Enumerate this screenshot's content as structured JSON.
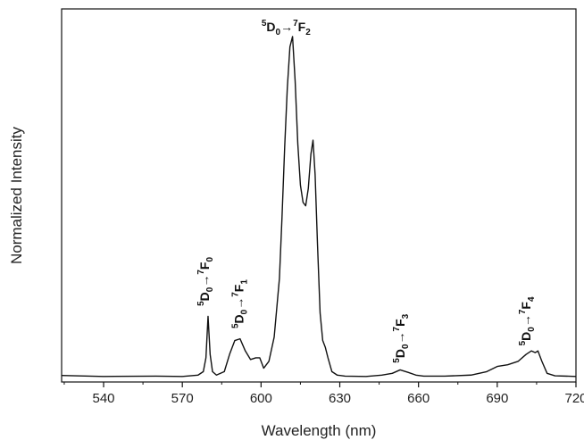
{
  "chart_data": {
    "type": "line",
    "title": "",
    "xlabel": "Wavelength (nm)",
    "ylabel": "Normalized Intensity",
    "xlim": [
      524,
      720
    ],
    "ylim": [
      0,
      1.08
    ],
    "xticks": [
      540,
      570,
      600,
      630,
      660,
      690,
      720
    ],
    "xtick_labels": [
      "540",
      "570",
      "600",
      "630",
      "660",
      "690",
      "720"
    ],
    "yticks_shown": false,
    "grid": false,
    "legend": "none",
    "line_color": "#111111",
    "series": [
      {
        "x": [
          524,
          540,
          560,
          570,
          576,
          578,
          579,
          579.8,
          580.6,
          581.5,
          583,
          586,
          588,
          590,
          592,
          594,
          596,
          598,
          599.5,
          601,
          603,
          605,
          607,
          608,
          609,
          610,
          611,
          612,
          613,
          614,
          615,
          616,
          617,
          618,
          619,
          619.8,
          620.6,
          621.5,
          622.5,
          623.5,
          624.5,
          625.5,
          627,
          629,
          632,
          640,
          646,
          650,
          653,
          656,
          659,
          662,
          670,
          680,
          686,
          690,
          694,
          698,
          701,
          703,
          704.5,
          705.5,
          707,
          709,
          712,
          720
        ],
        "y": [
          0.019,
          0.016,
          0.017,
          0.016,
          0.02,
          0.03,
          0.07,
          0.19,
          0.08,
          0.03,
          0.02,
          0.03,
          0.08,
          0.12,
          0.125,
          0.09,
          0.065,
          0.07,
          0.07,
          0.04,
          0.06,
          0.13,
          0.3,
          0.48,
          0.68,
          0.85,
          0.97,
          1.0,
          0.87,
          0.69,
          0.57,
          0.52,
          0.51,
          0.56,
          0.66,
          0.7,
          0.6,
          0.4,
          0.2,
          0.12,
          0.1,
          0.07,
          0.03,
          0.02,
          0.017,
          0.016,
          0.02,
          0.025,
          0.035,
          0.028,
          0.02,
          0.017,
          0.017,
          0.02,
          0.03,
          0.045,
          0.05,
          0.06,
          0.08,
          0.09,
          0.085,
          0.09,
          0.06,
          0.025,
          0.018,
          0.016
        ]
      }
    ],
    "annotations": [
      {
        "label": "5D0→7F0",
        "sup1": "5",
        "main1": "D",
        "sub1": "0",
        "arrow": "→",
        "sup2": "7",
        "main2": "F",
        "sub2": "0",
        "x": 578.5,
        "y": 0.22,
        "orientation": "vertical"
      },
      {
        "label": "5D0→7F1",
        "sup1": "5",
        "main1": "D",
        "sub1": "0",
        "arrow": "→",
        "sup2": "7",
        "main2": "F",
        "sub2": "1",
        "x": 591.5,
        "y": 0.155,
        "orientation": "vertical"
      },
      {
        "label": "5D0→7F2",
        "sup1": "5",
        "main1": "D",
        "sub1": "0",
        "arrow": "→",
        "sup2": "7",
        "main2": "F",
        "sub2": "2",
        "x": 609.5,
        "y": 1.015,
        "orientation": "horizontal"
      },
      {
        "label": "5D0→7F3",
        "sup1": "5",
        "main1": "D",
        "sub1": "0",
        "arrow": "→",
        "sup2": "7",
        "main2": "F",
        "sub2": "3",
        "x": 653,
        "y": 0.055,
        "orientation": "vertical"
      },
      {
        "label": "5D0→7F4",
        "sup1": "5",
        "main1": "D",
        "sub1": "0",
        "arrow": "→",
        "sup2": "7",
        "main2": "F",
        "sub2": "4",
        "x": 701,
        "y": 0.105,
        "orientation": "vertical"
      }
    ]
  }
}
